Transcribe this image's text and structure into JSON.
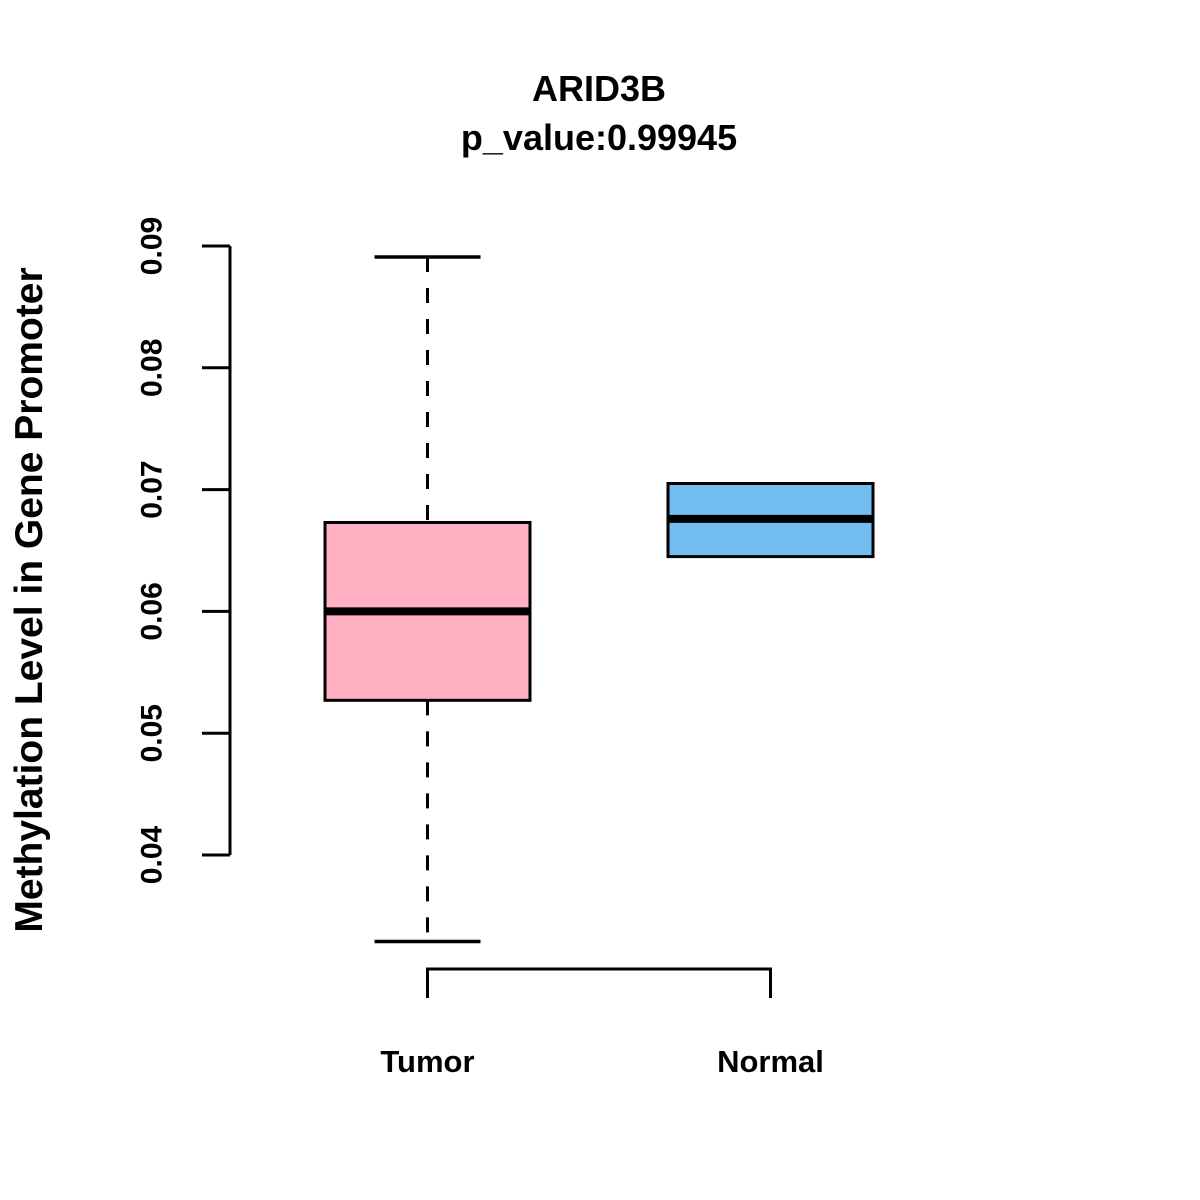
{
  "chart": {
    "title": "ARID3B",
    "subtitle": "p_value:0.99945",
    "ylabel": "Methylation Level in Gene Promoter"
  },
  "chart_data": {
    "type": "boxplot",
    "title": "ARID3B",
    "subtitle": "p_value:0.99945",
    "xlabel": "",
    "ylabel": "Methylation Level in Gene Promoter",
    "categories": [
      "Tumor",
      "Normal"
    ],
    "series": [
      {
        "name": "Tumor",
        "color": "#FFB1C3",
        "whisker_low": 0.0329,
        "q1": 0.0527,
        "median": 0.06,
        "q3": 0.0673,
        "whisker_high": 0.0891
      },
      {
        "name": "Normal",
        "color": "#74BDF2",
        "whisker_low": 0.0645,
        "q1": 0.0645,
        "median": 0.0676,
        "q3": 0.0705,
        "whisker_high": 0.0705
      }
    ],
    "yticks": [
      0.04,
      0.05,
      0.06,
      0.07,
      0.08,
      0.09
    ],
    "ytick_labels": [
      "0.04",
      "0.05",
      "0.06",
      "0.07",
      "0.08",
      "0.09"
    ],
    "ylim": [
      0.0329,
      0.0891
    ],
    "grid": false,
    "legend": "none",
    "colors": {
      "box_stroke": "#000000",
      "median": "#000000",
      "axis": "#000000",
      "background": "#ffffff"
    }
  }
}
